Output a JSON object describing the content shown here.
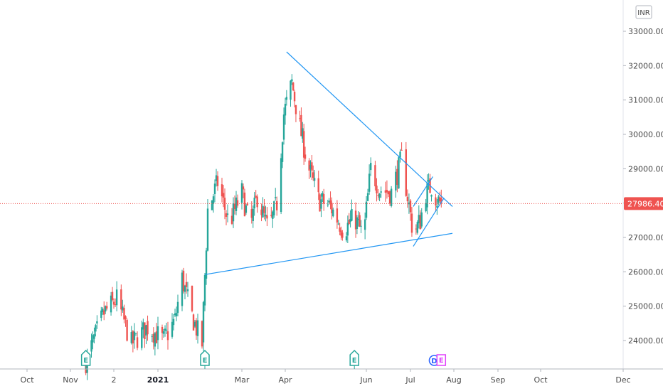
{
  "chart_data": {
    "type": "candlestick",
    "currency": "INR",
    "last_price": 27986.4,
    "last_price_label": "27986.40",
    "price_ticks": [
      "33000.00",
      "32000.00",
      "31000.00",
      "30000.00",
      "29000.00",
      "28000.00",
      "27000.00",
      "26000.00",
      "25000.00",
      "24000.00"
    ],
    "price_tick_values": [
      33000,
      32000,
      31000,
      30000,
      29000,
      28000,
      27000,
      26000,
      25000,
      24000
    ],
    "time_ticks": [
      {
        "label": "Oct",
        "bold": false
      },
      {
        "label": "Nov",
        "bold": false
      },
      {
        "label": "2",
        "bold": false
      },
      {
        "label": "2021",
        "bold": true
      },
      {
        "label": "Mar",
        "bold": false
      },
      {
        "label": "Apr",
        "bold": false
      },
      {
        "label": "Jun",
        "bold": false
      },
      {
        "label": "Jul",
        "bold": false
      },
      {
        "label": "Aug",
        "bold": false
      },
      {
        "label": "Sep",
        "bold": false
      },
      {
        "label": "Oct",
        "bold": false
      },
      {
        "label": "Dec",
        "bold": false
      }
    ],
    "colors": {
      "up": "#26a69a",
      "down": "#ef5350",
      "trendline": "#2196f3",
      "price_line": "#ef5350",
      "dividend": "#2962ff",
      "earnings_upcoming": "#e040fb"
    },
    "price_range": [
      23100,
      33400
    ],
    "trendlines": [
      {
        "name": "upper",
        "from": {
          "date": "2021-04-02",
          "price": 32400
        },
        "to": {
          "date": "2021-07-31",
          "price": 27900
        }
      },
      {
        "name": "lower",
        "from": {
          "date": "2021-02-03",
          "price": 25920
        },
        "to": {
          "date": "2021-07-31",
          "price": 27120
        }
      },
      {
        "name": "channel-upper",
        "from": {
          "date": "2021-07-03",
          "price": 27900
        },
        "to": {
          "date": "2021-07-17",
          "price": 28770
        }
      },
      {
        "name": "channel-lower",
        "from": {
          "date": "2021-07-03",
          "price": 26740
        },
        "to": {
          "date": "2021-07-25",
          "price": 28150
        }
      }
    ],
    "events": [
      {
        "type": "earnings",
        "label": "E",
        "date": "2020-11-12"
      },
      {
        "type": "earnings",
        "label": "E",
        "date": "2021-02-03"
      },
      {
        "type": "earnings",
        "label": "E",
        "date": "2021-05-23"
      },
      {
        "type": "dividend",
        "label": "D",
        "date": "2021-07-18"
      },
      {
        "type": "earnings_upcoming",
        "label": "E",
        "date": "2021-07-23"
      }
    ],
    "anchors": [
      {
        "date": "2020-11-12",
        "close": 23400
      },
      {
        "date": "2020-11-25",
        "close": 24800
      },
      {
        "date": "2020-12-04",
        "close": 25200
      },
      {
        "date": "2020-12-14",
        "close": 23900
      },
      {
        "date": "2020-12-25",
        "close": 24400
      },
      {
        "date": "2021-01-05",
        "close": 24000
      },
      {
        "date": "2021-01-13",
        "close": 24600
      },
      {
        "date": "2021-01-18",
        "close": 25800
      },
      {
        "date": "2021-01-25",
        "close": 24700
      },
      {
        "date": "2021-02-01",
        "close": 23900
      },
      {
        "date": "2021-02-03",
        "close": 25900
      },
      {
        "date": "2021-02-05",
        "close": 27800
      },
      {
        "date": "2021-02-12",
        "close": 28600
      },
      {
        "date": "2021-02-20",
        "close": 27400
      },
      {
        "date": "2021-03-01",
        "close": 28300
      },
      {
        "date": "2021-03-07",
        "close": 27300
      },
      {
        "date": "2021-03-12",
        "close": 28200
      },
      {
        "date": "2021-03-20",
        "close": 27200
      },
      {
        "date": "2021-03-26",
        "close": 28000
      },
      {
        "date": "2021-03-31",
        "close": 30600
      },
      {
        "date": "2021-04-06",
        "close": 31500
      },
      {
        "date": "2021-04-12",
        "close": 30200
      },
      {
        "date": "2021-04-18",
        "close": 29100
      },
      {
        "date": "2021-04-26",
        "close": 28100
      },
      {
        "date": "2021-05-05",
        "close": 27900
      },
      {
        "date": "2021-05-15",
        "close": 27200
      },
      {
        "date": "2021-05-23",
        "close": 27600
      },
      {
        "date": "2021-05-30",
        "close": 27000
      },
      {
        "date": "2021-06-04",
        "close": 29000
      },
      {
        "date": "2021-06-10",
        "close": 28400
      },
      {
        "date": "2021-06-18",
        "close": 28300
      },
      {
        "date": "2021-06-25",
        "close": 29300
      },
      {
        "date": "2021-06-29",
        "close": 28200
      },
      {
        "date": "2021-07-03",
        "close": 27100
      },
      {
        "date": "2021-07-08",
        "close": 27500
      },
      {
        "date": "2021-07-12",
        "close": 28300
      },
      {
        "date": "2021-07-16",
        "close": 28500
      },
      {
        "date": "2021-07-20",
        "close": 28100
      },
      {
        "date": "2021-07-23",
        "close": 27986.4
      }
    ]
  }
}
